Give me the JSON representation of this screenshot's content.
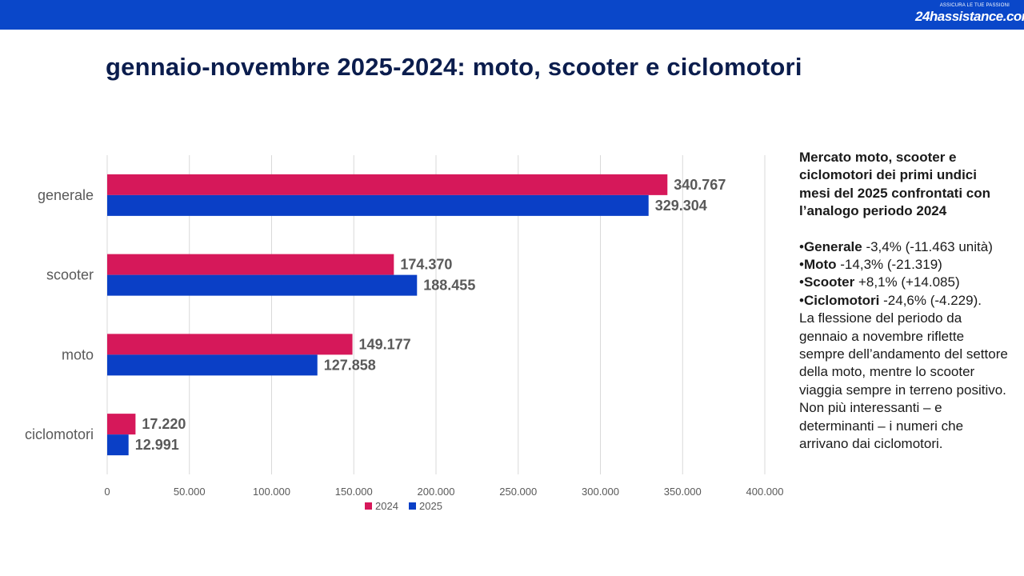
{
  "header": {
    "logo_tagline": "ASSICURA LE TUE PASSIONI",
    "logo_text": "24hassistance.com",
    "bar_color": "#0a47c9"
  },
  "title": "gennaio-novembre 2025-2024: moto, scooter e ciclomotori",
  "chart_data": {
    "type": "bar",
    "orientation": "horizontal",
    "categories": [
      "generale",
      "scooter",
      "moto",
      "ciclomotori"
    ],
    "series": [
      {
        "name": "2024",
        "color": "#d6185a",
        "values": [
          340767,
          174370,
          149177,
          17220
        ],
        "labels": [
          "340.767",
          "174.370",
          "149.177",
          "17.220"
        ]
      },
      {
        "name": "2025",
        "color": "#0a3fc6",
        "values": [
          329304,
          188455,
          127858,
          12991
        ],
        "labels": [
          "329.304",
          "188.455",
          "127.858",
          "12.991"
        ]
      }
    ],
    "xlim": [
      0,
      400000
    ],
    "x_ticks": [
      0,
      50000,
      100000,
      150000,
      200000,
      250000,
      300000,
      350000,
      400000
    ],
    "x_tick_labels": [
      "0",
      "50.000",
      "100.000",
      "150.000",
      "200.000",
      "250.000",
      "300.000",
      "350.000",
      "400.000"
    ],
    "grid": true,
    "legend_position": "bottom"
  },
  "side": {
    "heading": "Mercato moto, scooter e ciclomotori dei primi undici mesi del 2025 confrontati con l’analogo periodo 2024",
    "bullets": [
      {
        "name": "Generale",
        "text": " -3,4% (-11.463 unità)"
      },
      {
        "name": "Moto",
        "text": " -14,3% (-21.319)"
      },
      {
        "name": "Scooter",
        "text": " +8,1% (+14.085)"
      },
      {
        "name": "Ciclomotori",
        "text": " -24,6% (-4.229)."
      }
    ],
    "bullet_char": "•",
    "paragraph": "La flessione del periodo da gennaio a novembre riflette sempre dell’andamento del settore della moto, mentre lo scooter viaggia sempre in terreno positivo. Non più interessanti – e determinanti – i numeri che arrivano dai ciclomotori."
  }
}
